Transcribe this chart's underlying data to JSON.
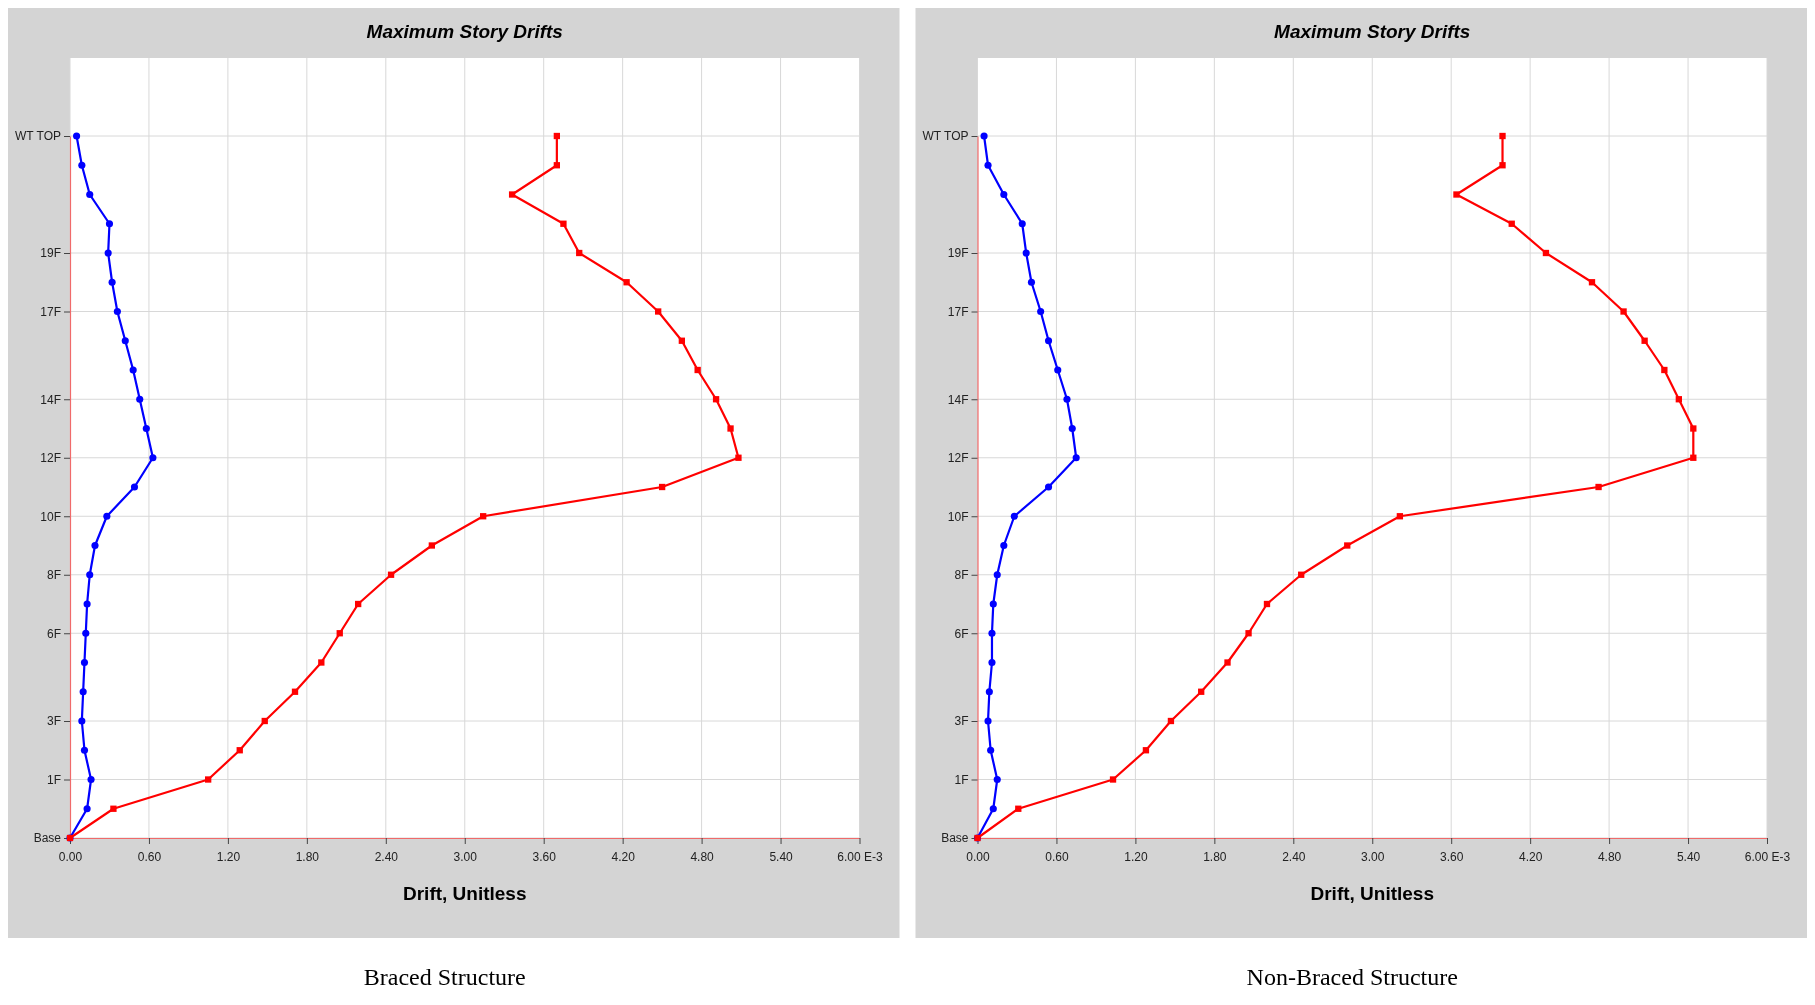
{
  "chart_data": [
    {
      "type": "line",
      "orientation": "horizontal",
      "title": "Maximum Story Drifts",
      "xlabel": "Drift, Unitless",
      "annotations": [
        "Braced Structure"
      ],
      "categories": [
        "WT TOP",
        null,
        null,
        null,
        "19F",
        null,
        "17F",
        null,
        null,
        "14F",
        null,
        "12F",
        null,
        "10F",
        null,
        "8F",
        null,
        "6F",
        null,
        null,
        "3F",
        null,
        "1F",
        null,
        "Base"
      ],
      "xlim": [
        0,
        6
      ],
      "xticks": [
        {
          "value": 0,
          "label": "0.00"
        },
        {
          "value": 0.6,
          "label": "0.60"
        },
        {
          "value": 1.2,
          "label": "1.20"
        },
        {
          "value": 1.8,
          "label": "1.80"
        },
        {
          "value": 2.4,
          "label": "2.40"
        },
        {
          "value": 3,
          "label": "3.00"
        },
        {
          "value": 3.6,
          "label": "3.60"
        },
        {
          "value": 4.2,
          "label": "4.20"
        },
        {
          "value": 4.8,
          "label": "4.80"
        },
        {
          "value": 5.4,
          "label": "5.40"
        },
        {
          "value": 6,
          "label": "6.00 E-3"
        }
      ],
      "grid": true,
      "line_style": "solid",
      "series": [
        {
          "color": "#0000ff",
          "marker": "circle",
          "values": [
            0.05,
            0.09,
            0.15,
            0.3,
            0.29,
            0.32,
            0.36,
            0.42,
            0.48,
            0.53,
            0.58,
            0.63,
            0.49,
            0.28,
            0.19,
            0.15,
            0.13,
            0.12,
            0.11,
            0.1,
            0.09,
            0.11,
            0.16,
            0.13,
            0
          ]
        },
        {
          "color": "#ff0000",
          "marker": "square",
          "values": [
            3.7,
            3.7,
            3.36,
            3.75,
            3.87,
            4.23,
            4.47,
            4.65,
            4.77,
            4.91,
            5.02,
            5.08,
            4.5,
            3.14,
            2.75,
            2.44,
            2.19,
            2.05,
            1.91,
            1.71,
            1.48,
            1.29,
            1.05,
            0.33,
            0
          ]
        }
      ]
    },
    {
      "type": "line",
      "orientation": "horizontal",
      "title": "Maximum Story Drifts",
      "xlabel": "Drift, Unitless",
      "annotations": [
        "Non-Braced Structure"
      ],
      "categories": [
        "WT TOP",
        null,
        null,
        null,
        "19F",
        null,
        "17F",
        null,
        null,
        "14F",
        null,
        "12F",
        null,
        "10F",
        null,
        "8F",
        null,
        "6F",
        null,
        null,
        "3F",
        null,
        "1F",
        null,
        "Base"
      ],
      "xlim": [
        0,
        6
      ],
      "xticks": [
        {
          "value": 0,
          "label": "0.00"
        },
        {
          "value": 0.6,
          "label": "0.60"
        },
        {
          "value": 1.2,
          "label": "1.20"
        },
        {
          "value": 1.8,
          "label": "1.80"
        },
        {
          "value": 2.4,
          "label": "2.40"
        },
        {
          "value": 3,
          "label": "3.00"
        },
        {
          "value": 3.6,
          "label": "3.60"
        },
        {
          "value": 4.2,
          "label": "4.20"
        },
        {
          "value": 4.8,
          "label": "4.80"
        },
        {
          "value": 5.4,
          "label": "5.40"
        },
        {
          "value": 6,
          "label": "6.00 E-3"
        }
      ],
      "grid": true,
      "line_style": "solid",
      "series": [
        {
          "color": "#0000ff",
          "marker": "circle",
          "values": [
            0.05,
            0.08,
            0.2,
            0.34,
            0.37,
            0.41,
            0.48,
            0.54,
            0.61,
            0.68,
            0.72,
            0.75,
            0.54,
            0.28,
            0.2,
            0.15,
            0.12,
            0.11,
            0.11,
            0.09,
            0.08,
            0.1,
            0.15,
            0.12,
            0
          ]
        },
        {
          "color": "#ff0000",
          "marker": "square",
          "values": [
            3.99,
            3.99,
            3.64,
            4.06,
            4.32,
            4.67,
            4.91,
            5.07,
            5.22,
            5.33,
            5.44,
            5.44,
            4.72,
            3.21,
            2.81,
            2.46,
            2.2,
            2.06,
            1.9,
            1.7,
            1.47,
            1.28,
            1.03,
            0.31,
            0
          ]
        }
      ]
    }
  ]
}
